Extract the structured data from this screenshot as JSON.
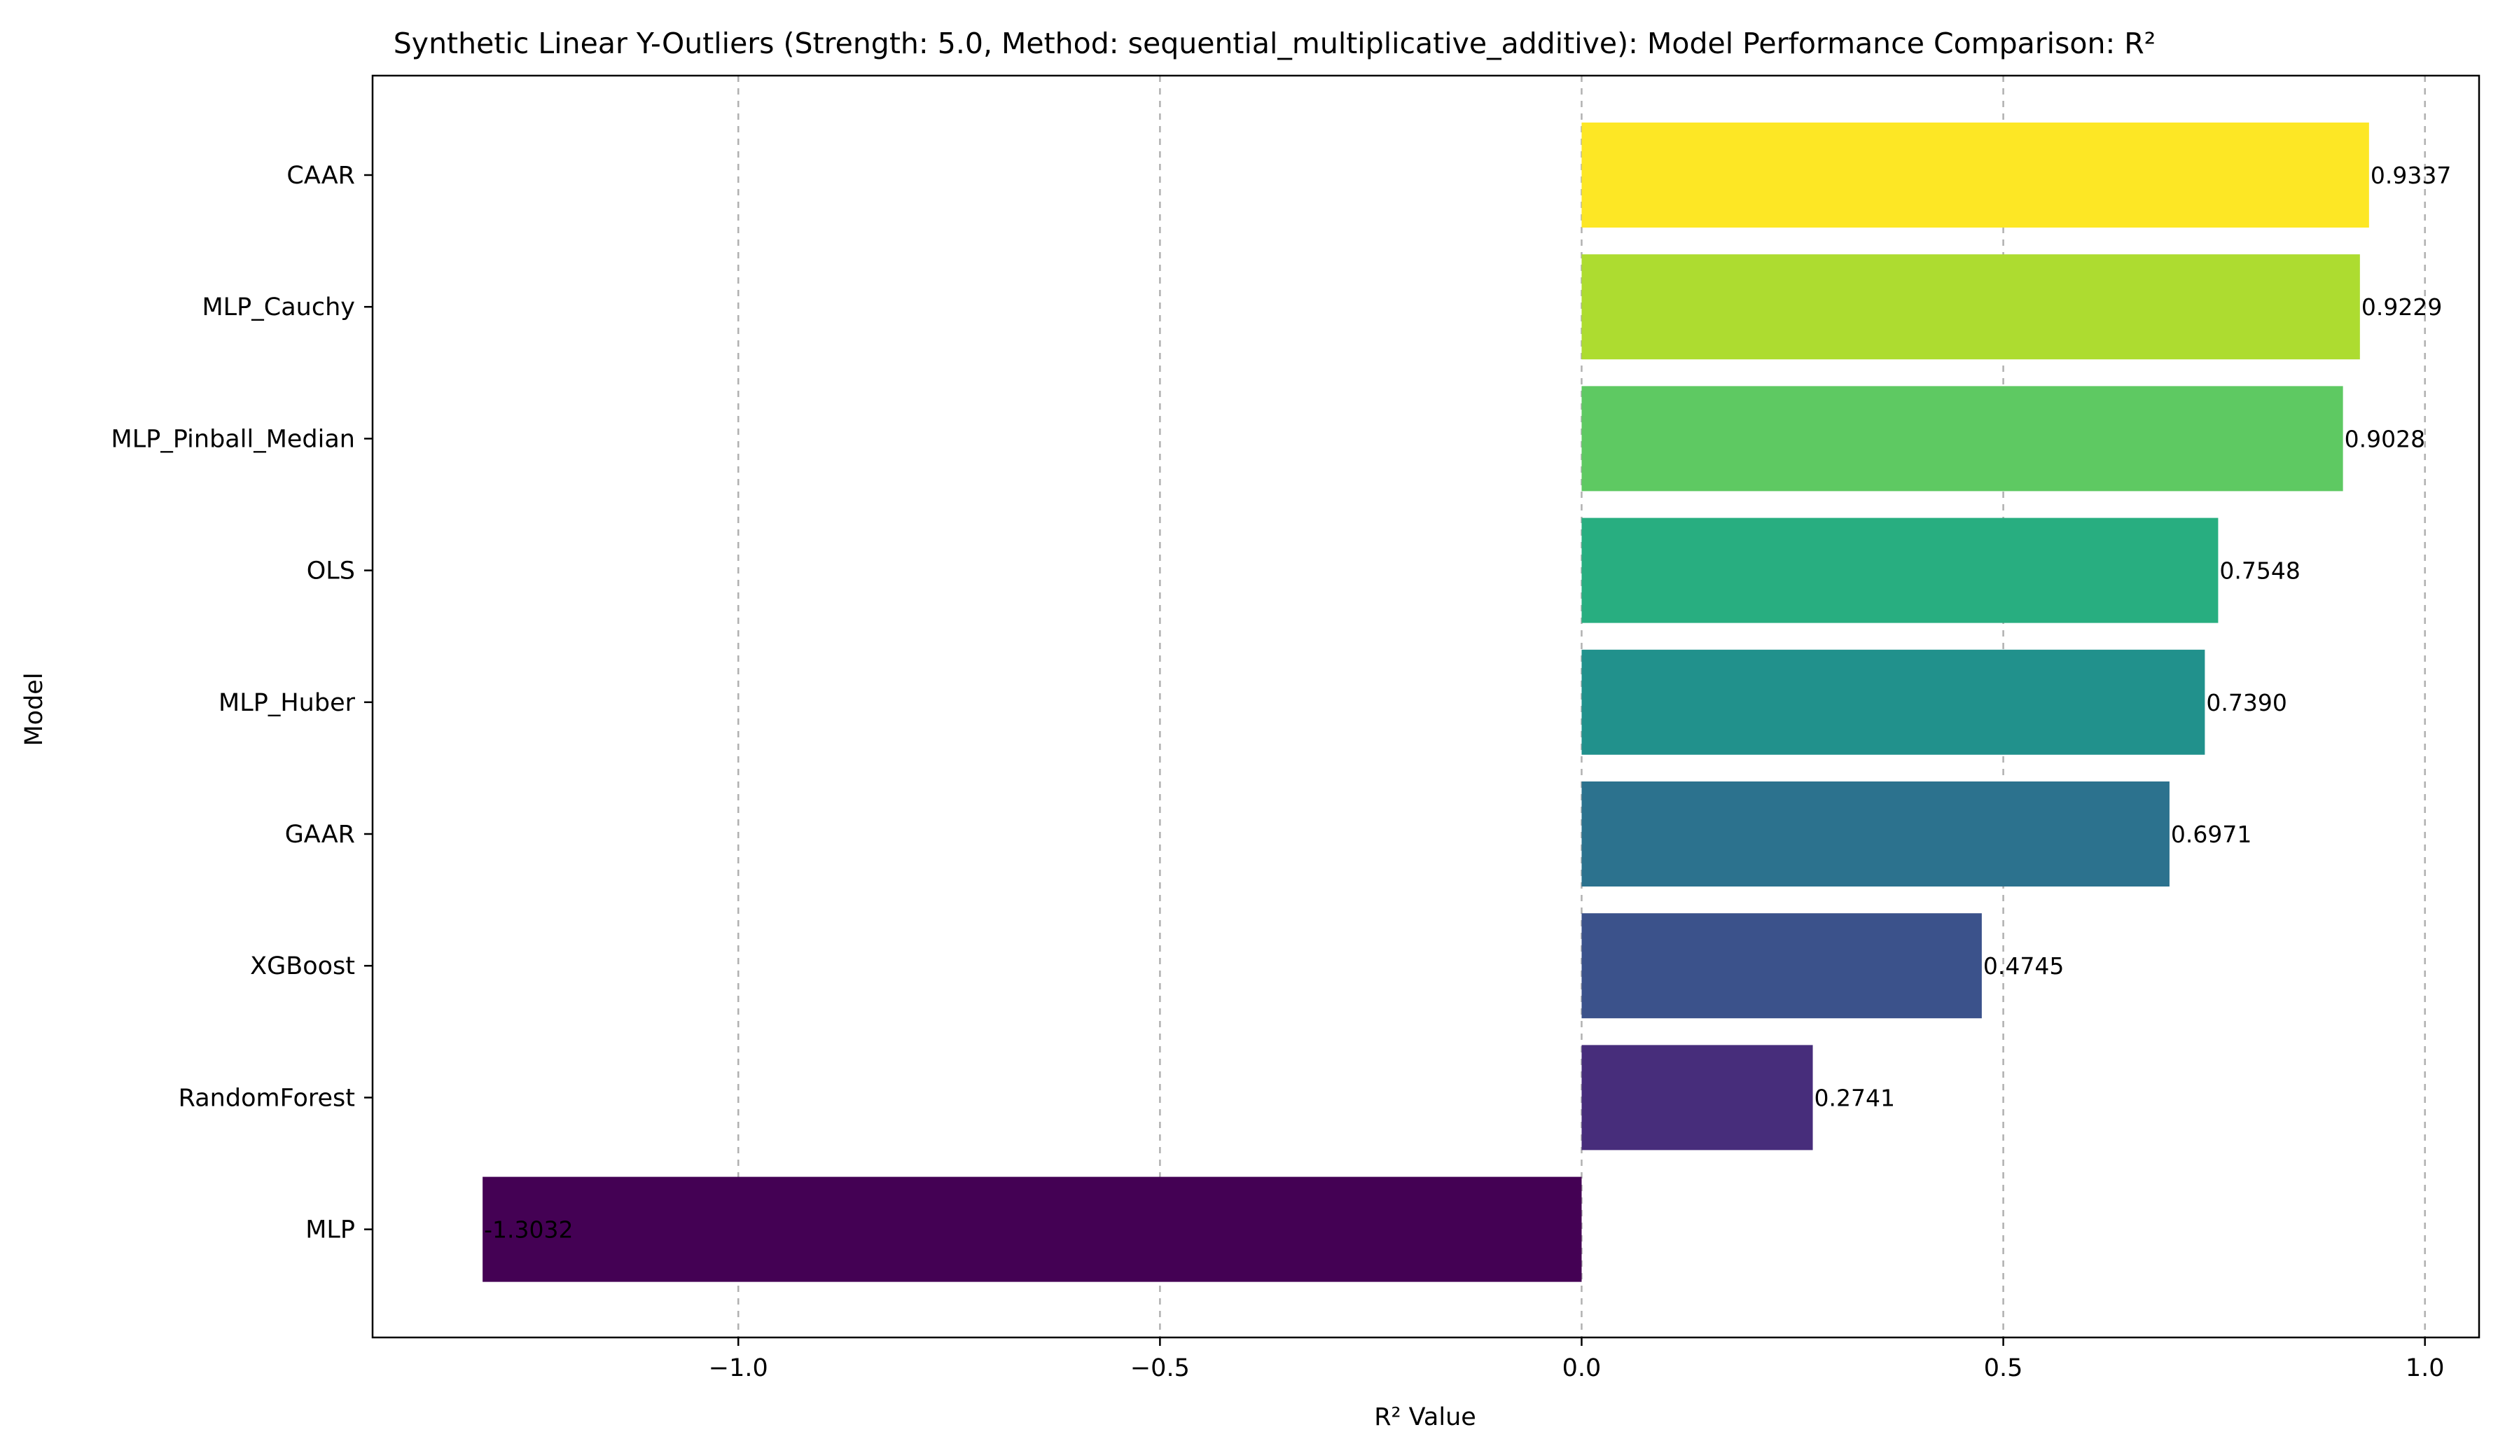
{
  "chart_data": {
    "type": "bar",
    "orientation": "horizontal",
    "title": "Synthetic Linear Y-Outliers (Strength: 5.0, Method: sequential_multiplicative_additive): Model Performance Comparison: R²",
    "xlabel": "R² Value",
    "ylabel": "Model",
    "categories": [
      "CAAR",
      "MLP_Cauchy",
      "MLP_Pinball_Median",
      "OLS",
      "MLP_Huber",
      "GAAR",
      "XGBoost",
      "RandomForest",
      "MLP"
    ],
    "values": [
      0.9337,
      0.9229,
      0.9028,
      0.7548,
      0.739,
      0.6971,
      0.4745,
      0.2741,
      -1.3032
    ],
    "value_labels": [
      "0.9337",
      "0.9229",
      "0.9028",
      "0.7548",
      "0.7390",
      "0.6971",
      "0.4745",
      "0.2741",
      "-1.3032"
    ],
    "colors": [
      "#fde725",
      "#addc30",
      "#5ec962",
      "#28ae80",
      "#21918c",
      "#2c728e",
      "#3b528b",
      "#472d7b",
      "#440154"
    ],
    "xlim": [
      -1.4337,
      1.0642
    ],
    "xticks": [
      -1.0,
      -0.5,
      0.0,
      0.5,
      1.0
    ],
    "xtick_labels": [
      "−1.0",
      "−0.5",
      "0.0",
      "0.5",
      "1.0"
    ],
    "grid": "x-dashed",
    "legend": "none"
  }
}
